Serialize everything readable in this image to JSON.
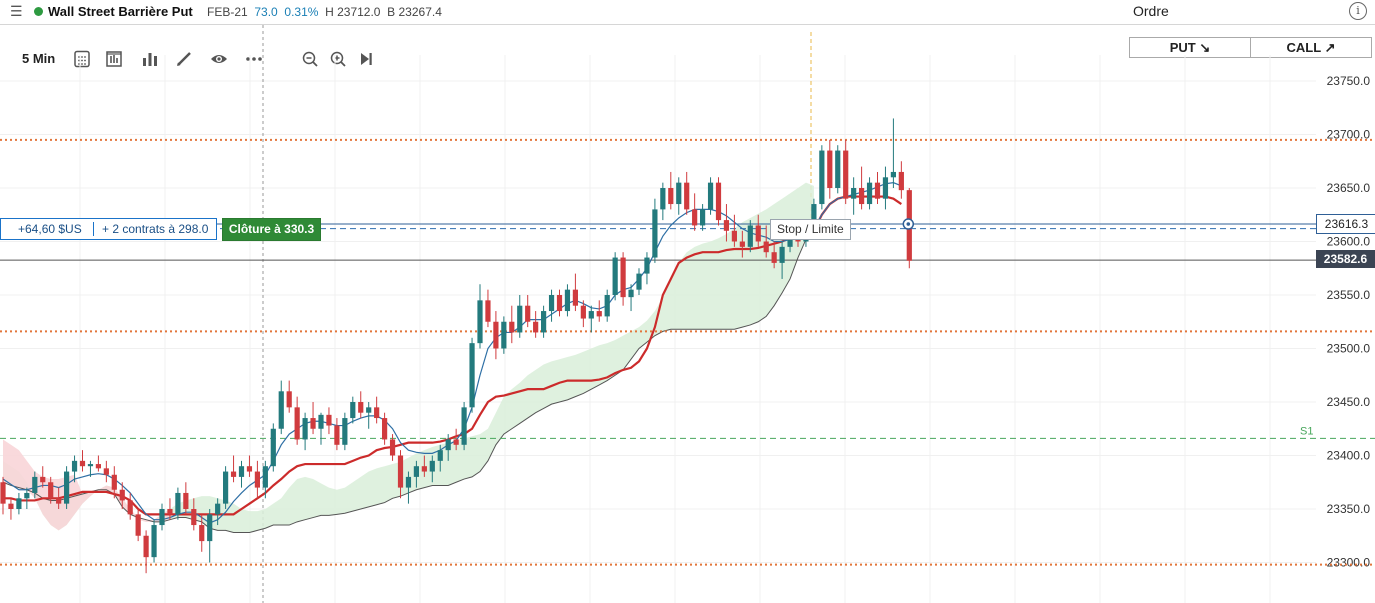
{
  "header": {
    "menu_icon": "hamburger-icon",
    "instrument": "Wall Street Barrière Put",
    "status_color": "#2e9a41",
    "expiry": "FEB-21",
    "last": "73.0",
    "change": "0.31%",
    "high": "H 23712.0",
    "bid": "B 23267.4",
    "order_title": "Ordre",
    "info_icon": "info-icon"
  },
  "toolbar": {
    "interval": "5 Min",
    "icons": [
      "calculator-icon",
      "chart-type-icon",
      "indicators-icon",
      "draw-icon",
      "eye-icon",
      "more-icon",
      "zoom-out-icon",
      "zoom-in-icon",
      "jump-to-end-icon"
    ]
  },
  "order": {
    "put_label": "PUT ↘",
    "call_label": "CALL ↗"
  },
  "position": {
    "pnl": "+64,60 $US",
    "contracts": "+ 2 contrats à 298.0",
    "close_label": "Clôture à 330.3",
    "stop_label": "Stop / Limite"
  },
  "price_axis": {
    "current": "23616.3",
    "last_close": "23582.6"
  },
  "chart_data": {
    "type": "candlestick",
    "y_ticks": [
      "23750.0",
      "23700.0",
      "23650.0",
      "23600.0",
      "23550.0",
      "23500.0",
      "23450.0",
      "23400.0",
      "23350.0",
      "23300.0"
    ],
    "ylim": [
      23275,
      23780
    ],
    "levels": [
      {
        "price": 23695,
        "style": "dotted",
        "color": "#e2763b"
      },
      {
        "price": 23516,
        "style": "dotted",
        "color": "#e2763b"
      },
      {
        "price": 23298,
        "style": "dotted",
        "color": "#e2763b"
      },
      {
        "price": 23416,
        "style": "dashed",
        "color": "#48a65c",
        "label": "S1"
      },
      {
        "price": 23612,
        "style": "dashed",
        "color": "#2f6fb0"
      }
    ],
    "last_close_line": 23582.6,
    "current_line": 23616.3,
    "colors": {
      "up": "#237a7d",
      "down": "#d03b3e",
      "kijun": "#cc2b2b",
      "tenkan": "#2e6fa5",
      "cloud_bull": "#d9eed9",
      "cloud_bear": "#f8d5d8"
    },
    "candles": [
      [
        23375,
        23380,
        23345,
        23355
      ],
      [
        23355,
        23360,
        23340,
        23350
      ],
      [
        23350,
        23365,
        23345,
        23360
      ],
      [
        23360,
        23370,
        23350,
        23365
      ],
      [
        23365,
        23385,
        23360,
        23380
      ],
      [
        23380,
        23390,
        23370,
        23375
      ],
      [
        23375,
        23380,
        23355,
        23360
      ],
      [
        23360,
        23370,
        23350,
        23355
      ],
      [
        23355,
        23390,
        23350,
        23385
      ],
      [
        23385,
        23400,
        23375,
        23395
      ],
      [
        23395,
        23405,
        23385,
        23390
      ],
      [
        23390,
        23395,
        23380,
        23392
      ],
      [
        23392,
        23400,
        23385,
        23388
      ],
      [
        23388,
        23395,
        23375,
        23382
      ],
      [
        23382,
        23390,
        23360,
        23368
      ],
      [
        23368,
        23375,
        23350,
        23358
      ],
      [
        23358,
        23365,
        23340,
        23345
      ],
      [
        23345,
        23350,
        23320,
        23325
      ],
      [
        23325,
        23330,
        23290,
        23305
      ],
      [
        23305,
        23340,
        23300,
        23335
      ],
      [
        23335,
        23355,
        23330,
        23350
      ],
      [
        23350,
        23360,
        23340,
        23345
      ],
      [
        23345,
        23370,
        23340,
        23365
      ],
      [
        23365,
        23375,
        23345,
        23350
      ],
      [
        23350,
        23360,
        23330,
        23335
      ],
      [
        23335,
        23345,
        23310,
        23320
      ],
      [
        23320,
        23350,
        23300,
        23345
      ],
      [
        23345,
        23360,
        23335,
        23355
      ],
      [
        23355,
        23390,
        23350,
        23385
      ],
      [
        23385,
        23400,
        23375,
        23380
      ],
      [
        23380,
        23395,
        23370,
        23390
      ],
      [
        23390,
        23400,
        23380,
        23385
      ],
      [
        23385,
        23395,
        23360,
        23370
      ],
      [
        23370,
        23395,
        23360,
        23390
      ],
      [
        23390,
        23430,
        23385,
        23425
      ],
      [
        23425,
        23470,
        23420,
        23460
      ],
      [
        23460,
        23470,
        23440,
        23445
      ],
      [
        23445,
        23455,
        23410,
        23415
      ],
      [
        23415,
        23440,
        23405,
        23435
      ],
      [
        23435,
        23450,
        23420,
        23425
      ],
      [
        23425,
        23440,
        23410,
        23438
      ],
      [
        23438,
        23445,
        23420,
        23428
      ],
      [
        23428,
        23435,
        23405,
        23410
      ],
      [
        23410,
        23440,
        23405,
        23435
      ],
      [
        23435,
        23455,
        23430,
        23450
      ],
      [
        23450,
        23460,
        23435,
        23440
      ],
      [
        23440,
        23450,
        23425,
        23445
      ],
      [
        23445,
        23455,
        23430,
        23435
      ],
      [
        23435,
        23440,
        23410,
        23415
      ],
      [
        23415,
        23420,
        23395,
        23400
      ],
      [
        23400,
        23405,
        23360,
        23370
      ],
      [
        23370,
        23385,
        23355,
        23380
      ],
      [
        23380,
        23395,
        23370,
        23390
      ],
      [
        23390,
        23400,
        23380,
        23385
      ],
      [
        23385,
        23400,
        23375,
        23395
      ],
      [
        23395,
        23410,
        23385,
        23405
      ],
      [
        23405,
        23420,
        23395,
        23415
      ],
      [
        23415,
        23425,
        23405,
        23410
      ],
      [
        23410,
        23450,
        23405,
        23445
      ],
      [
        23445,
        23510,
        23440,
        23505
      ],
      [
        23505,
        23560,
        23500,
        23545
      ],
      [
        23545,
        23555,
        23520,
        23525
      ],
      [
        23525,
        23535,
        23490,
        23500
      ],
      [
        23500,
        23530,
        23495,
        23525
      ],
      [
        23525,
        23540,
        23505,
        23515
      ],
      [
        23515,
        23550,
        23510,
        23540
      ],
      [
        23540,
        23550,
        23520,
        23525
      ],
      [
        23525,
        23535,
        23510,
        23515
      ],
      [
        23515,
        23540,
        23510,
        23535
      ],
      [
        23535,
        23555,
        23525,
        23550
      ],
      [
        23550,
        23555,
        23530,
        23535
      ],
      [
        23535,
        23560,
        23530,
        23555
      ],
      [
        23555,
        23570,
        23535,
        23540
      ],
      [
        23540,
        23545,
        23520,
        23528
      ],
      [
        23528,
        23540,
        23515,
        23535
      ],
      [
        23535,
        23545,
        23525,
        23530
      ],
      [
        23530,
        23555,
        23525,
        23550
      ],
      [
        23550,
        23590,
        23545,
        23585
      ],
      [
        23585,
        23590,
        23540,
        23548
      ],
      [
        23548,
        23560,
        23535,
        23555
      ],
      [
        23555,
        23575,
        23550,
        23570
      ],
      [
        23570,
        23590,
        23560,
        23585
      ],
      [
        23585,
        23640,
        23580,
        23630
      ],
      [
        23630,
        23655,
        23620,
        23650
      ],
      [
        23650,
        23665,
        23630,
        23635
      ],
      [
        23635,
        23660,
        23625,
        23655
      ],
      [
        23655,
        23665,
        23625,
        23630
      ],
      [
        23630,
        23645,
        23610,
        23615
      ],
      [
        23615,
        23635,
        23610,
        23630
      ],
      [
        23630,
        23660,
        23625,
        23655
      ],
      [
        23655,
        23660,
        23615,
        23620
      ],
      [
        23620,
        23635,
        23600,
        23610
      ],
      [
        23610,
        23625,
        23595,
        23600
      ],
      [
        23600,
        23610,
        23585,
        23595
      ],
      [
        23595,
        23620,
        23590,
        23615
      ],
      [
        23615,
        23625,
        23595,
        23600
      ],
      [
        23600,
        23615,
        23585,
        23590
      ],
      [
        23590,
        23600,
        23575,
        23580
      ],
      [
        23580,
        23600,
        23565,
        23595
      ],
      [
        23595,
        23610,
        23590,
        23605
      ],
      [
        23605,
        23620,
        23595,
        23600
      ],
      [
        23600,
        23615,
        23595,
        23612
      ],
      [
        23612,
        23640,
        23605,
        23635
      ],
      [
        23635,
        23690,
        23630,
        23685
      ],
      [
        23685,
        23695,
        23640,
        23650
      ],
      [
        23650,
        23690,
        23645,
        23685
      ],
      [
        23685,
        23695,
        23635,
        23640
      ],
      [
        23640,
        23660,
        23625,
        23650
      ],
      [
        23650,
        23670,
        23630,
        23635
      ],
      [
        23635,
        23660,
        23630,
        23655
      ],
      [
        23655,
        23665,
        23635,
        23640
      ],
      [
        23640,
        23670,
        23630,
        23660
      ],
      [
        23660,
        23715,
        23650,
        23665
      ],
      [
        23665,
        23675,
        23640,
        23648
      ],
      [
        23648,
        23650,
        23575,
        23582
      ]
    ],
    "tenkan": [
      23378,
      23373,
      23368,
      23368,
      23370,
      23372,
      23372,
      23370,
      23373,
      23378,
      23380,
      23382,
      23383,
      23382,
      23378,
      23372,
      23365,
      23355,
      23345,
      23340,
      23340,
      23342,
      23345,
      23347,
      23347,
      23342,
      23337,
      23340,
      23347,
      23357,
      23365,
      23372,
      23377,
      23382,
      23395,
      23410,
      23420,
      23425,
      23430,
      23432,
      23432,
      23430,
      23428,
      23428,
      23432,
      23435,
      23437,
      23437,
      23433,
      23425,
      23412,
      23405,
      23403,
      23402,
      23402,
      23405,
      23410,
      23414,
      23425,
      23445,
      23475,
      23500,
      23510,
      23515,
      23515,
      23520,
      23527,
      23527,
      23527,
      23532,
      23537,
      23542,
      23545,
      23542,
      23538,
      23537,
      23540,
      23550,
      23555,
      23557,
      23565,
      23575,
      23590,
      23605,
      23615,
      23622,
      23627,
      23630,
      23630,
      23630,
      23628,
      23624,
      23618,
      23612,
      23608,
      23606,
      23604,
      23600,
      23600,
      23602,
      23605,
      23606,
      23612,
      23625,
      23635,
      23640,
      23642,
      23644,
      23646,
      23648,
      23651,
      23654,
      23655,
      23652
    ],
    "kijun": [
      23360,
      23360,
      23358,
      23358,
      23358,
      23360,
      23360,
      23360,
      23362,
      23364,
      23366,
      23366,
      23366,
      23366,
      23364,
      23362,
      23358,
      23350,
      23345,
      23345,
      23345,
      23345,
      23345,
      23345,
      23345,
      23345,
      23345,
      23345,
      23345,
      23345,
      23350,
      23355,
      23360,
      23365,
      23372,
      23378,
      23385,
      23390,
      23392,
      23392,
      23392,
      23392,
      23392,
      23392,
      23395,
      23398,
      23400,
      23405,
      23407,
      23408,
      23410,
      23412,
      23412,
      23412,
      23412,
      23413,
      23415,
      23418,
      23420,
      23425,
      23438,
      23450,
      23455,
      23456,
      23458,
      23460,
      23462,
      23462,
      23462,
      23465,
      23468,
      23470,
      23470,
      23470,
      23470,
      23471,
      23473,
      23477,
      23480,
      23482,
      23488,
      23500,
      23520,
      23550,
      23565,
      23580,
      23585,
      23588,
      23590,
      23590,
      23590,
      23592,
      23593,
      23593,
      23593,
      23594,
      23596,
      23598,
      23600,
      23603,
      23605,
      23607,
      23610,
      23625,
      23635,
      23640,
      23642,
      23642,
      23642,
      23642,
      23642,
      23642,
      23640,
      23635
    ],
    "cloud": [
      [
        23395,
        23375
      ],
      [
        23390,
        23372
      ],
      [
        23385,
        23370
      ],
      [
        23375,
        23368
      ],
      [
        23360,
        23365
      ],
      [
        23345,
        23360
      ],
      [
        23335,
        23358
      ],
      [
        23330,
        23358
      ],
      [
        23335,
        23360
      ],
      [
        23345,
        23362
      ],
      [
        23355,
        23364
      ],
      [
        23362,
        23366
      ],
      [
        23368,
        23368
      ],
      [
        23372,
        23368
      ],
      [
        23370,
        23364
      ],
      [
        23360,
        23352
      ],
      [
        23350,
        23345
      ],
      [
        23340,
        23342
      ],
      [
        23338,
        23340
      ],
      [
        23340,
        23338
      ],
      [
        23345,
        23338
      ],
      [
        23350,
        23340
      ],
      [
        23355,
        23342
      ],
      [
        23358,
        23342
      ],
      [
        23360,
        23340
      ],
      [
        23362,
        23338
      ],
      [
        23362,
        23332
      ],
      [
        23360,
        23330
      ],
      [
        23358,
        23330
      ],
      [
        23355,
        23328
      ],
      [
        23350,
        23328
      ],
      [
        23348,
        23328
      ],
      [
        23348,
        23330
      ],
      [
        23350,
        23332
      ],
      [
        23355,
        23335
      ],
      [
        23360,
        23335
      ],
      [
        23370,
        23335
      ],
      [
        23378,
        23338
      ],
      [
        23380,
        23340
      ],
      [
        23378,
        23342
      ],
      [
        23374,
        23344
      ],
      [
        23370,
        23344
      ],
      [
        23368,
        23345
      ],
      [
        23370,
        23346
      ],
      [
        23375,
        23348
      ],
      [
        23380,
        23350
      ],
      [
        23385,
        23352
      ],
      [
        23388,
        23354
      ],
      [
        23390,
        23356
      ],
      [
        23392,
        23360
      ],
      [
        23394,
        23362
      ],
      [
        23398,
        23365
      ],
      [
        23402,
        23368
      ],
      [
        23405,
        23370
      ],
      [
        23408,
        23372
      ],
      [
        23410,
        23372
      ],
      [
        23412,
        23372
      ],
      [
        23414,
        23375
      ],
      [
        23416,
        23378
      ],
      [
        23418,
        23380
      ],
      [
        23420,
        23385
      ],
      [
        23425,
        23395
      ],
      [
        23440,
        23410
      ],
      [
        23455,
        23420
      ],
      [
        23462,
        23425
      ],
      [
        23468,
        23430
      ],
      [
        23475,
        23435
      ],
      [
        23480,
        23440
      ],
      [
        23485,
        23444
      ],
      [
        23488,
        23448
      ],
      [
        23490,
        23450
      ],
      [
        23492,
        23452
      ],
      [
        23494,
        23455
      ],
      [
        23497,
        23458
      ],
      [
        23500,
        23462
      ],
      [
        23503,
        23466
      ],
      [
        23505,
        23470
      ],
      [
        23508,
        23475
      ],
      [
        23512,
        23480
      ],
      [
        23516,
        23490
      ],
      [
        23520,
        23500
      ],
      [
        23526,
        23506
      ],
      [
        23535,
        23512
      ],
      [
        23548,
        23516
      ],
      [
        23565,
        23518
      ],
      [
        23580,
        23518
      ],
      [
        23590,
        23518
      ],
      [
        23595,
        23518
      ],
      [
        23598,
        23518
      ],
      [
        23600,
        23518
      ],
      [
        23603,
        23518
      ],
      [
        23607,
        23518
      ],
      [
        23612,
        23518
      ],
      [
        23618,
        23520
      ],
      [
        23622,
        23522
      ],
      [
        23626,
        23525
      ],
      [
        23630,
        23530
      ],
      [
        23635,
        23540
      ],
      [
        23640,
        23552
      ],
      [
        23645,
        23565
      ],
      [
        23650,
        23585
      ],
      [
        23655,
        23602
      ],
      [
        23652,
        23610
      ]
    ]
  }
}
